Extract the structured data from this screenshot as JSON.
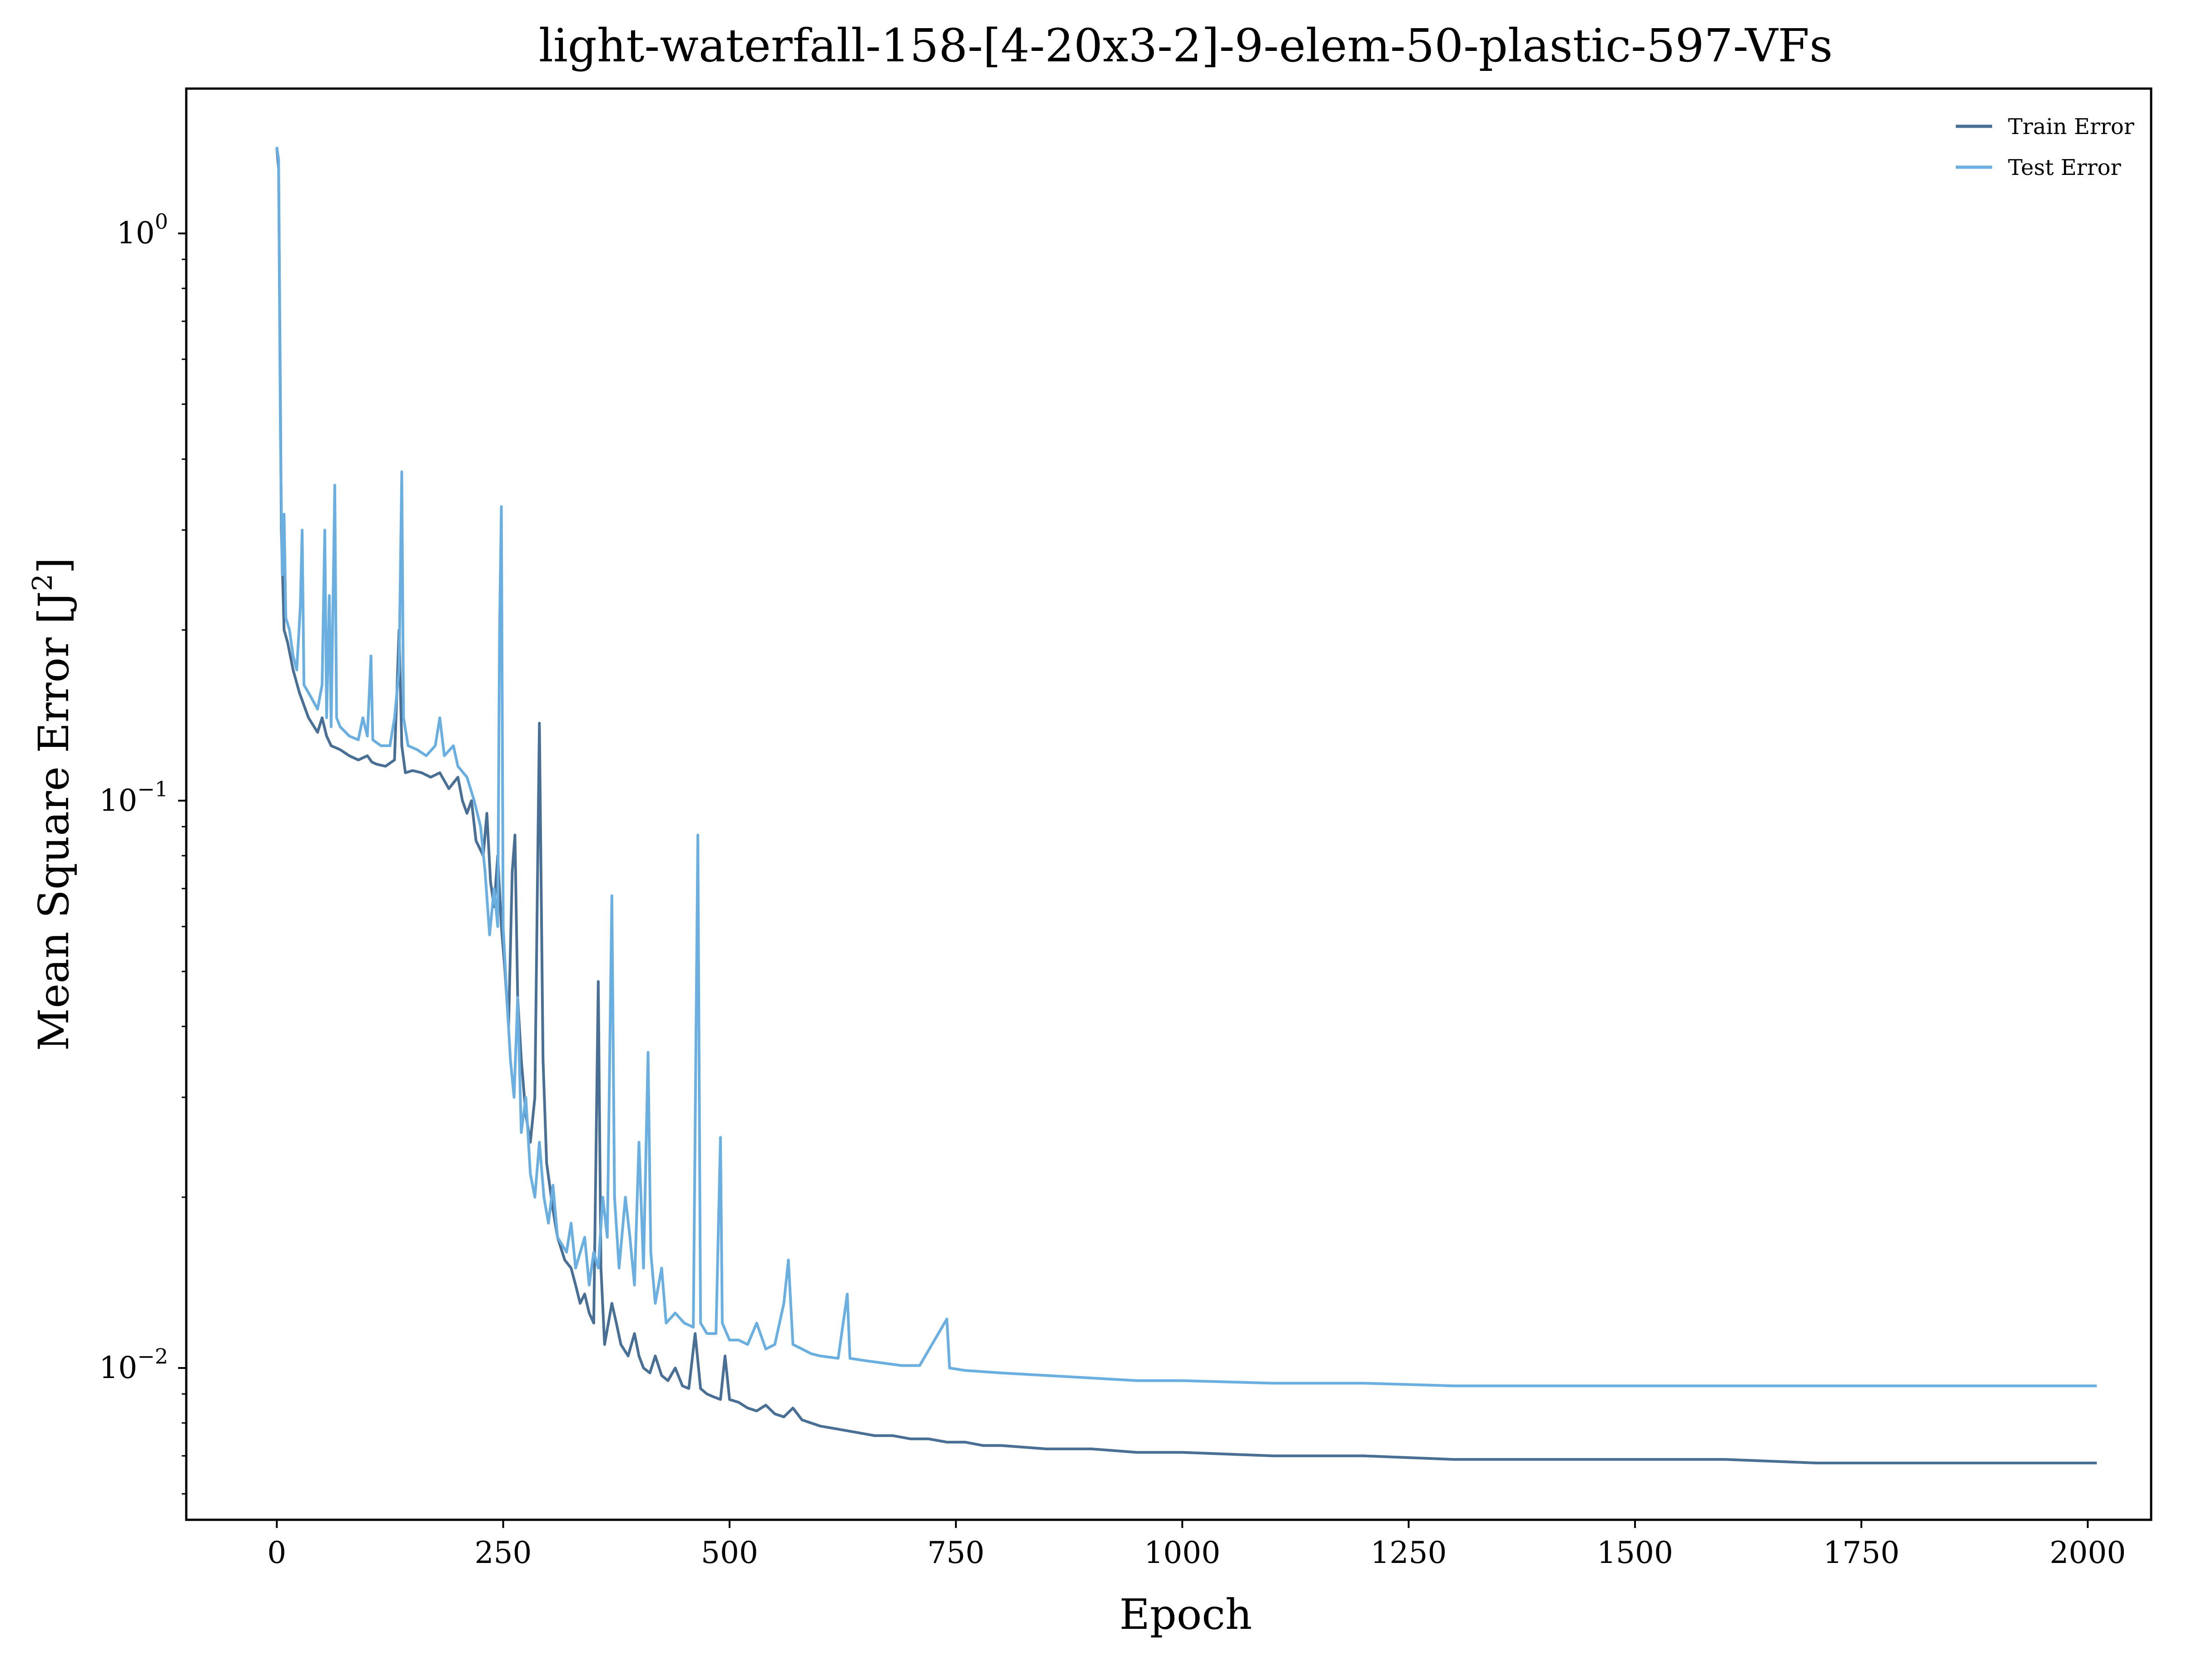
{
  "chart_data": {
    "type": "line",
    "title": "light-waterfall-158-[4-20x3-2]-9-elem-50-plastic-597-VFs",
    "xlabel": "Epoch",
    "ylabel": "Mean Square Error [J",
    "ylabel_sup": "2",
    "ylabel_suffix": "]",
    "xlim": [
      -100,
      2070
    ],
    "ylim": [
      0.0054,
      1.8
    ],
    "yscale": "log",
    "grid": false,
    "legend_placement": "top-right",
    "x_ticks": [
      {
        "value": 0,
        "label": "0"
      },
      {
        "value": 250,
        "label": "250"
      },
      {
        "value": 500,
        "label": "500"
      },
      {
        "value": 750,
        "label": "750"
      },
      {
        "value": 1000,
        "label": "1000"
      },
      {
        "value": 1250,
        "label": "1250"
      },
      {
        "value": 1500,
        "label": "1500"
      },
      {
        "value": 1750,
        "label": "1750"
      },
      {
        "value": 2000,
        "label": "2000"
      }
    ],
    "y_ticks": [
      {
        "value": 1,
        "base": "10",
        "exp": "0"
      },
      {
        "value": 0.1,
        "base": "10",
        "exp": "−1"
      },
      {
        "value": 0.01,
        "base": "10",
        "exp": "−2"
      }
    ],
    "series": [
      {
        "name": "Train Error",
        "color": "#4a6f94",
        "points": [
          [
            0,
            1.42
          ],
          [
            2,
            1.3
          ],
          [
            5,
            0.3
          ],
          [
            8,
            0.2
          ],
          [
            12,
            0.19
          ],
          [
            18,
            0.17
          ],
          [
            25,
            0.155
          ],
          [
            35,
            0.14
          ],
          [
            45,
            0.132
          ],
          [
            50,
            0.14
          ],
          [
            55,
            0.13
          ],
          [
            60,
            0.125
          ],
          [
            70,
            0.123
          ],
          [
            80,
            0.12
          ],
          [
            90,
            0.118
          ],
          [
            100,
            0.12
          ],
          [
            105,
            0.117
          ],
          [
            110,
            0.116
          ],
          [
            120,
            0.115
          ],
          [
            130,
            0.118
          ],
          [
            135,
            0.2
          ],
          [
            138,
            0.125
          ],
          [
            142,
            0.112
          ],
          [
            150,
            0.113
          ],
          [
            160,
            0.112
          ],
          [
            170,
            0.11
          ],
          [
            180,
            0.112
          ],
          [
            190,
            0.105
          ],
          [
            200,
            0.11
          ],
          [
            205,
            0.1
          ],
          [
            210,
            0.095
          ],
          [
            215,
            0.1
          ],
          [
            220,
            0.085
          ],
          [
            228,
            0.08
          ],
          [
            232,
            0.095
          ],
          [
            236,
            0.072
          ],
          [
            240,
            0.065
          ],
          [
            244,
            0.08
          ],
          [
            248,
            0.06
          ],
          [
            252,
            0.05
          ],
          [
            256,
            0.04
          ],
          [
            260,
            0.075
          ],
          [
            263,
            0.087
          ],
          [
            266,
            0.045
          ],
          [
            270,
            0.035
          ],
          [
            275,
            0.028
          ],
          [
            280,
            0.025
          ],
          [
            285,
            0.03
          ],
          [
            290,
            0.137
          ],
          [
            294,
            0.035
          ],
          [
            298,
            0.023
          ],
          [
            305,
            0.019
          ],
          [
            310,
            0.017
          ],
          [
            318,
            0.0155
          ],
          [
            325,
            0.015
          ],
          [
            330,
            0.014
          ],
          [
            335,
            0.013
          ],
          [
            340,
            0.0135
          ],
          [
            345,
            0.0125
          ],
          [
            350,
            0.012
          ],
          [
            355,
            0.048
          ],
          [
            358,
            0.015
          ],
          [
            362,
            0.011
          ],
          [
            370,
            0.013
          ],
          [
            375,
            0.012
          ],
          [
            380,
            0.011
          ],
          [
            388,
            0.0105
          ],
          [
            395,
            0.0115
          ],
          [
            400,
            0.0105
          ],
          [
            405,
            0.01
          ],
          [
            412,
            0.0098
          ],
          [
            418,
            0.0105
          ],
          [
            425,
            0.0097
          ],
          [
            432,
            0.0095
          ],
          [
            440,
            0.01
          ],
          [
            448,
            0.0093
          ],
          [
            455,
            0.0092
          ],
          [
            462,
            0.0115
          ],
          [
            468,
            0.0092
          ],
          [
            475,
            0.009
          ],
          [
            482,
            0.0089
          ],
          [
            490,
            0.0088
          ],
          [
            495,
            0.0105
          ],
          [
            500,
            0.0088
          ],
          [
            510,
            0.0087
          ],
          [
            520,
            0.0085
          ],
          [
            530,
            0.0084
          ],
          [
            540,
            0.0086
          ],
          [
            550,
            0.0083
          ],
          [
            560,
            0.0082
          ],
          [
            570,
            0.0085
          ],
          [
            580,
            0.0081
          ],
          [
            590,
            0.008
          ],
          [
            600,
            0.0079
          ],
          [
            620,
            0.0078
          ],
          [
            640,
            0.0077
          ],
          [
            660,
            0.0076
          ],
          [
            680,
            0.0076
          ],
          [
            700,
            0.0075
          ],
          [
            720,
            0.0075
          ],
          [
            740,
            0.0074
          ],
          [
            760,
            0.0074
          ],
          [
            780,
            0.0073
          ],
          [
            800,
            0.0073
          ],
          [
            850,
            0.0072
          ],
          [
            900,
            0.0072
          ],
          [
            950,
            0.0071
          ],
          [
            1000,
            0.0071
          ],
          [
            1100,
            0.007
          ],
          [
            1200,
            0.007
          ],
          [
            1300,
            0.0069
          ],
          [
            1400,
            0.0069
          ],
          [
            1500,
            0.0069
          ],
          [
            1600,
            0.0069
          ],
          [
            1700,
            0.0068
          ],
          [
            1800,
            0.0068
          ],
          [
            1900,
            0.0068
          ],
          [
            2010,
            0.0068
          ]
        ]
      },
      {
        "name": "Test Error",
        "color": "#6baee0",
        "points": [
          [
            0,
            1.42
          ],
          [
            2,
            1.35
          ],
          [
            4,
            0.44
          ],
          [
            6,
            0.25
          ],
          [
            8,
            0.32
          ],
          [
            10,
            0.21
          ],
          [
            14,
            0.2
          ],
          [
            18,
            0.18
          ],
          [
            22,
            0.17
          ],
          [
            26,
            0.22
          ],
          [
            28,
            0.3
          ],
          [
            30,
            0.16
          ],
          [
            35,
            0.155
          ],
          [
            40,
            0.15
          ],
          [
            45,
            0.145
          ],
          [
            50,
            0.16
          ],
          [
            53,
            0.3
          ],
          [
            55,
            0.14
          ],
          [
            58,
            0.23
          ],
          [
            60,
            0.135
          ],
          [
            62,
            0.22
          ],
          [
            64,
            0.36
          ],
          [
            66,
            0.14
          ],
          [
            70,
            0.135
          ],
          [
            80,
            0.13
          ],
          [
            90,
            0.128
          ],
          [
            95,
            0.14
          ],
          [
            100,
            0.13
          ],
          [
            104,
            0.18
          ],
          [
            106,
            0.128
          ],
          [
            115,
            0.125
          ],
          [
            125,
            0.125
          ],
          [
            130,
            0.14
          ],
          [
            135,
            0.17
          ],
          [
            138,
            0.38
          ],
          [
            140,
            0.14
          ],
          [
            145,
            0.125
          ],
          [
            155,
            0.123
          ],
          [
            165,
            0.12
          ],
          [
            175,
            0.125
          ],
          [
            180,
            0.14
          ],
          [
            185,
            0.12
          ],
          [
            195,
            0.125
          ],
          [
            200,
            0.115
          ],
          [
            210,
            0.11
          ],
          [
            218,
            0.1
          ],
          [
            225,
            0.09
          ],
          [
            230,
            0.075
          ],
          [
            235,
            0.058
          ],
          [
            240,
            0.07
          ],
          [
            244,
            0.06
          ],
          [
            246,
            0.2
          ],
          [
            248,
            0.33
          ],
          [
            250,
            0.06
          ],
          [
            254,
            0.045
          ],
          [
            258,
            0.035
          ],
          [
            262,
            0.03
          ],
          [
            266,
            0.045
          ],
          [
            270,
            0.026
          ],
          [
            275,
            0.03
          ],
          [
            280,
            0.022
          ],
          [
            285,
            0.02
          ],
          [
            290,
            0.025
          ],
          [
            295,
            0.02
          ],
          [
            300,
            0.018
          ],
          [
            305,
            0.021
          ],
          [
            310,
            0.017
          ],
          [
            320,
            0.016
          ],
          [
            325,
            0.018
          ],
          [
            330,
            0.015
          ],
          [
            340,
            0.017
          ],
          [
            345,
            0.014
          ],
          [
            350,
            0.016
          ],
          [
            355,
            0.015
          ],
          [
            360,
            0.02
          ],
          [
            365,
            0.017
          ],
          [
            370,
            0.068
          ],
          [
            373,
            0.02
          ],
          [
            378,
            0.015
          ],
          [
            385,
            0.02
          ],
          [
            390,
            0.017
          ],
          [
            395,
            0.014
          ],
          [
            400,
            0.025
          ],
          [
            405,
            0.015
          ],
          [
            410,
            0.036
          ],
          [
            413,
            0.016
          ],
          [
            418,
            0.013
          ],
          [
            425,
            0.015
          ],
          [
            430,
            0.012
          ],
          [
            440,
            0.0125
          ],
          [
            450,
            0.012
          ],
          [
            460,
            0.0118
          ],
          [
            465,
            0.087
          ],
          [
            468,
            0.012
          ],
          [
            475,
            0.0115
          ],
          [
            485,
            0.0115
          ],
          [
            490,
            0.0255
          ],
          [
            492,
            0.012
          ],
          [
            500,
            0.0112
          ],
          [
            510,
            0.0112
          ],
          [
            520,
            0.011
          ],
          [
            530,
            0.012
          ],
          [
            540,
            0.0108
          ],
          [
            550,
            0.011
          ],
          [
            560,
            0.013
          ],
          [
            565,
            0.0155
          ],
          [
            570,
            0.011
          ],
          [
            580,
            0.0108
          ],
          [
            590,
            0.0106
          ],
          [
            600,
            0.0105
          ],
          [
            620,
            0.0104
          ],
          [
            630,
            0.0135
          ],
          [
            633,
            0.0104
          ],
          [
            650,
            0.0103
          ],
          [
            670,
            0.0102
          ],
          [
            690,
            0.0101
          ],
          [
            710,
            0.0101
          ],
          [
            740,
            0.0122
          ],
          [
            743,
            0.01
          ],
          [
            760,
            0.0099
          ],
          [
            800,
            0.0098
          ],
          [
            850,
            0.0097
          ],
          [
            900,
            0.0096
          ],
          [
            950,
            0.0095
          ],
          [
            1000,
            0.0095
          ],
          [
            1100,
            0.0094
          ],
          [
            1200,
            0.0094
          ],
          [
            1300,
            0.0093
          ],
          [
            1400,
            0.0093
          ],
          [
            1500,
            0.0093
          ],
          [
            1600,
            0.0093
          ],
          [
            1700,
            0.0093
          ],
          [
            1800,
            0.0093
          ],
          [
            1900,
            0.0093
          ],
          [
            2010,
            0.0093
          ]
        ]
      }
    ]
  }
}
